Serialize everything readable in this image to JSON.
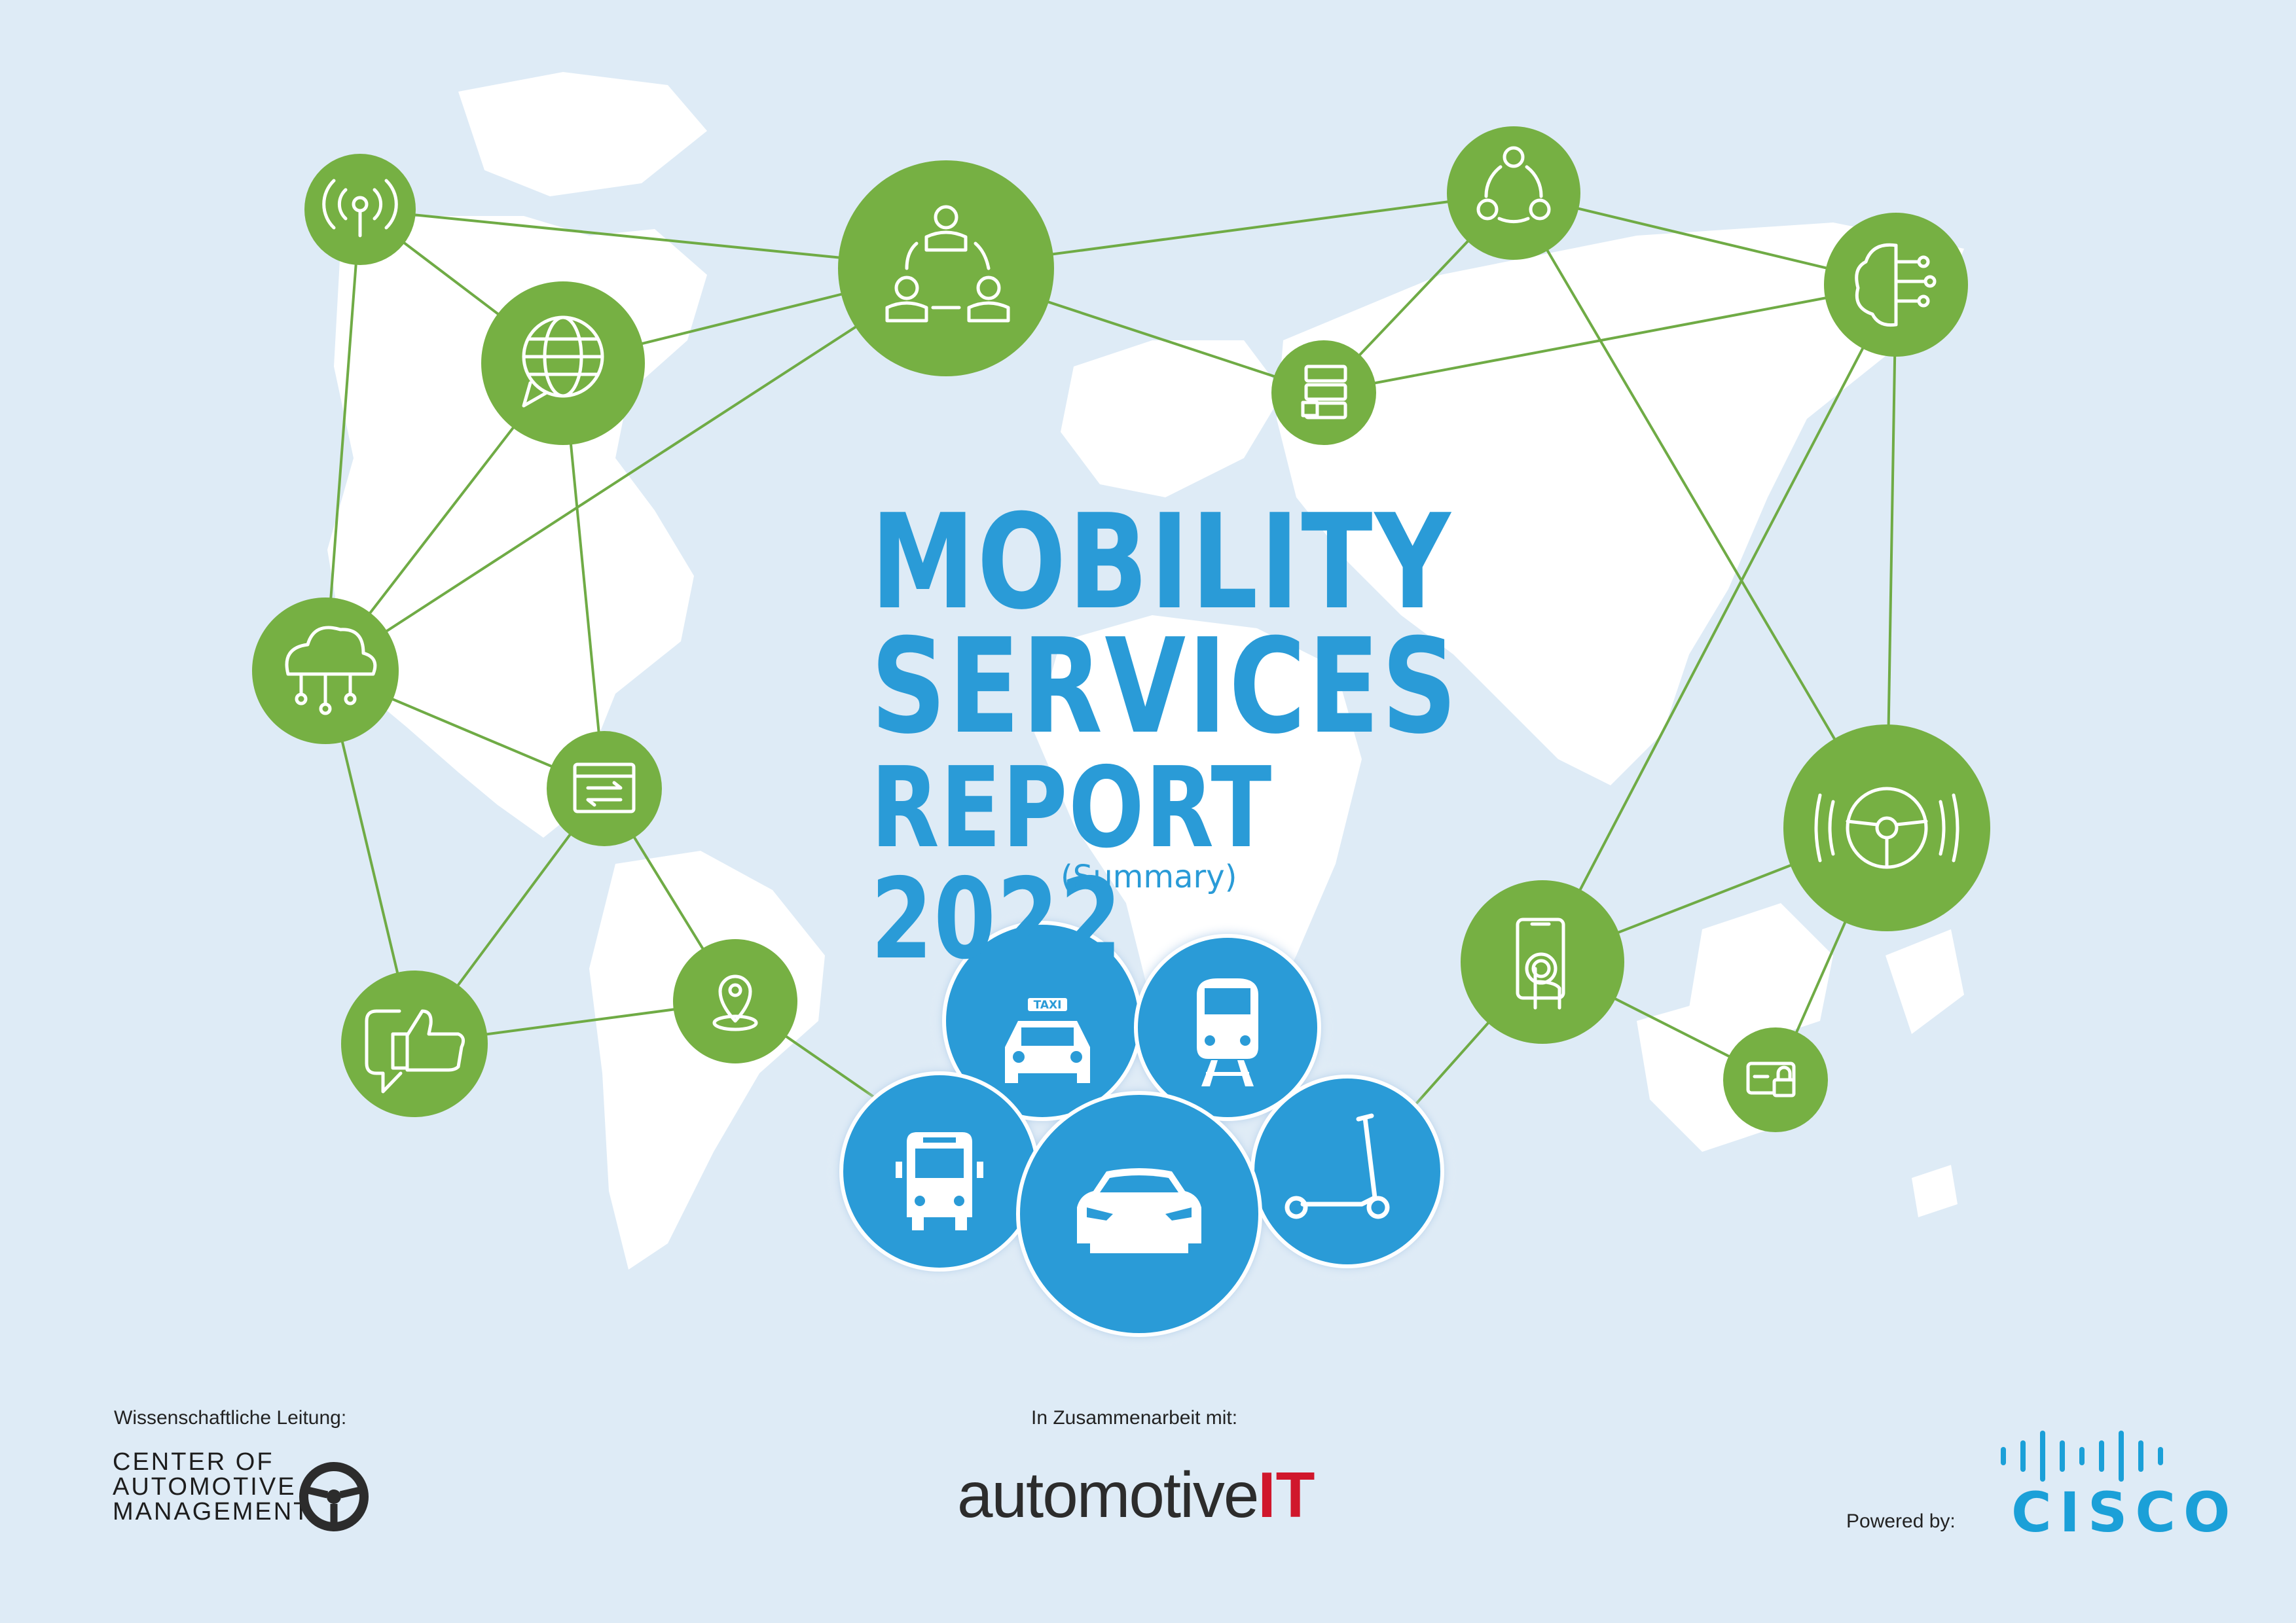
{
  "report": {
    "title_line1": "MOBILITY",
    "title_line2": "SERVICES",
    "title_line3": "REPORT 2022",
    "subtitle": "(Summary)"
  },
  "footer": {
    "scientific_lead_label": "Wissenschaftliche Leitung:",
    "cam_logo": {
      "line1": "CENTER OF",
      "line2": "AUTOMOTIVE",
      "line3": "MANAGEMENT"
    },
    "collaboration_label": "In Zusammenarbeit mit:",
    "automotiveit_logo": {
      "word": "automotive",
      "suffix": "IT"
    },
    "powered_by_label": "Powered by:",
    "cisco_logo": "CISCO"
  },
  "colors": {
    "background": "#deebf6",
    "map_land": "#ffffff",
    "network_green": "#76b043",
    "network_line": "#6fab45",
    "mobility_blue": "#2a9bd7",
    "title_blue": "#2a9bd7",
    "cisco_blue": "#1ba0d8",
    "automotiveit_red": "#d0172c"
  },
  "network_icons": [
    "antenna-icon",
    "globe-chat-icon",
    "team-cycle-icon",
    "share-network-icon",
    "ai-brain-icon",
    "server-lock-icon",
    "cloud-network-icon",
    "browser-transfer-icon",
    "steering-autonomous-icon",
    "smartphone-touch-icon",
    "like-chat-icon",
    "location-pin-icon",
    "card-lock-icon"
  ],
  "mobility_icons": [
    "bus-icon",
    "taxi-icon",
    "train-icon",
    "car-icon",
    "scooter-icon"
  ],
  "taxi_sign": "TAXI"
}
